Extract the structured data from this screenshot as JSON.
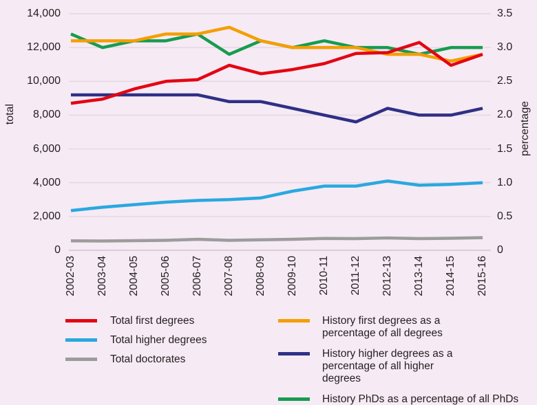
{
  "chart_data": {
    "type": "line",
    "title": "",
    "categories": [
      "2002-03",
      "2003-04",
      "2004-05",
      "2005-06",
      "2006-07",
      "2007-08",
      "2008-09",
      "2009-10",
      "2010-11",
      "2011-12",
      "2012-13",
      "2013-14",
      "2014-15",
      "2015-16"
    ],
    "axes": {
      "left": {
        "label": "total",
        "min": 0,
        "max": 14000,
        "tick_step": 2000,
        "ticks": [
          "14,000",
          "12,000",
          "10,000",
          "8,000",
          "6,000",
          "4,000",
          "2,000",
          "0"
        ]
      },
      "right": {
        "label": "percentage",
        "min": 0,
        "max": 3.5,
        "tick_step": 0.5,
        "ticks": [
          "3.5",
          "3.0",
          "2.5",
          "2.0",
          "1.5",
          "1.0",
          "0.5",
          "0"
        ]
      }
    },
    "grid": true,
    "legend_position": "bottom",
    "colors": {
      "background": "#f6eaf4",
      "gridline": "#e2d7e0",
      "gridline_zero": "#cfc3cc",
      "text": "#231f20"
    },
    "series": [
      {
        "name": "Total first degrees",
        "axis": "left",
        "color": "#e30613",
        "values": [
          8700,
          8950,
          9550,
          10000,
          10100,
          10950,
          10450,
          10700,
          11050,
          11650,
          11700,
          12300,
          10950,
          11600
        ]
      },
      {
        "name": "Total higher degrees",
        "axis": "left",
        "color": "#2aa8e0",
        "values": [
          2350,
          2550,
          2700,
          2850,
          2950,
          3000,
          3100,
          3500,
          3800,
          3800,
          4100,
          3850,
          3900,
          4000
        ]
      },
      {
        "name": "Total doctorates",
        "axis": "left",
        "color": "#9c9c9c",
        "values": [
          560,
          550,
          570,
          590,
          650,
          590,
          620,
          650,
          700,
          690,
          730,
          690,
          710,
          750
        ]
      },
      {
        "name": "History first degrees as a percentage of all degrees",
        "axis": "right",
        "color": "#f59e00",
        "values": [
          3.1,
          3.1,
          3.1,
          3.2,
          3.2,
          3.3,
          3.1,
          3.0,
          3.0,
          3.0,
          2.9,
          2.9,
          2.8,
          2.9
        ]
      },
      {
        "name": "History higher degrees as a percentage of all higher degrees",
        "axis": "right",
        "color": "#2f2f86",
        "values": [
          2.3,
          2.3,
          2.3,
          2.3,
          2.3,
          2.2,
          2.2,
          2.1,
          2.0,
          1.9,
          2.1,
          2.0,
          2.0,
          2.1
        ]
      },
      {
        "name": "History PhDs as a percentage of all PhDs",
        "axis": "right",
        "color": "#169c4f",
        "values": [
          3.2,
          3.0,
          3.1,
          3.1,
          3.2,
          2.9,
          3.1,
          3.0,
          3.1,
          3.0,
          3.0,
          2.9,
          3.0,
          3.0
        ]
      }
    ]
  }
}
